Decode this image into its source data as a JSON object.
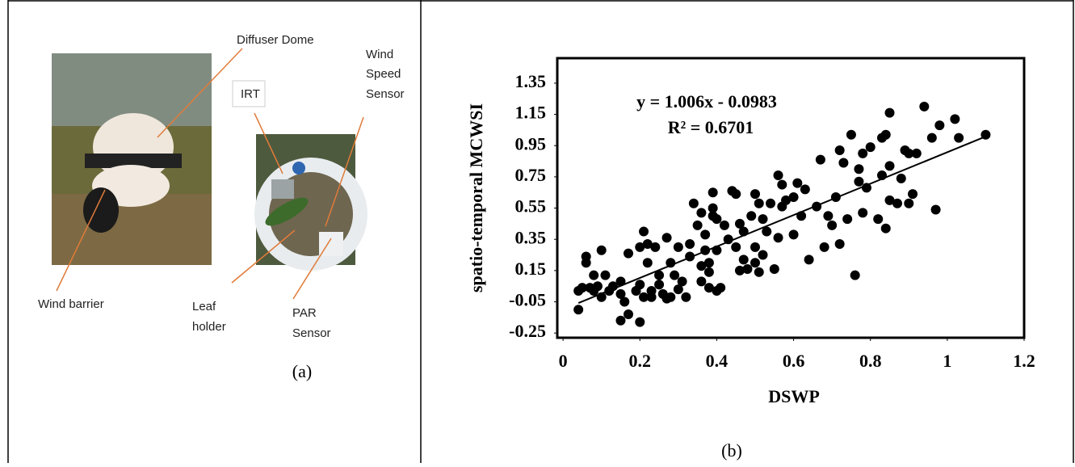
{
  "figure": {
    "panel_a": {
      "diffuser_dome": "Diffuser Dome",
      "irt": "IRT",
      "wind_speed_sensor": [
        "Wind",
        "Speed",
        "Sensor"
      ],
      "wind_barrier": "Wind barrier",
      "leaf_holder": [
        "Leaf",
        "holder"
      ],
      "par_sensor": [
        "PAR",
        "Sensor"
      ]
    },
    "caption_a": "(a)",
    "caption_b": "(b)"
  },
  "chart_data": {
    "type": "scatter",
    "x_label": "DSWP",
    "y_label": "spatio-temporal MCWSI",
    "annotations": [
      "y = 1.006x - 0.0983",
      "R² = 0.6701"
    ],
    "color": "#000000",
    "x": [
      0.04,
      0.04,
      0.05,
      0.06,
      0.06,
      0.07,
      0.08,
      0.08,
      0.09,
      0.1,
      0.1,
      0.11,
      0.12,
      0.13,
      0.15,
      0.15,
      0.15,
      0.16,
      0.17,
      0.17,
      0.19,
      0.2,
      0.2,
      0.2,
      0.21,
      0.21,
      0.22,
      0.22,
      0.23,
      0.23,
      0.24,
      0.25,
      0.25,
      0.26,
      0.27,
      0.27,
      0.28,
      0.28,
      0.29,
      0.3,
      0.3,
      0.31,
      0.32,
      0.33,
      0.33,
      0.34,
      0.35,
      0.36,
      0.36,
      0.36,
      0.37,
      0.37,
      0.38,
      0.38,
      0.38,
      0.39,
      0.39,
      0.39,
      0.4,
      0.4,
      0.4,
      0.41,
      0.42,
      0.43,
      0.44,
      0.45,
      0.45,
      0.46,
      0.46,
      0.47,
      0.47,
      0.48,
      0.49,
      0.5,
      0.5,
      0.5,
      0.51,
      0.51,
      0.52,
      0.52,
      0.53,
      0.54,
      0.55,
      0.56,
      0.56,
      0.57,
      0.57,
      0.58,
      0.6,
      0.6,
      0.61,
      0.62,
      0.63,
      0.64,
      0.66,
      0.67,
      0.68,
      0.69,
      0.7,
      0.71,
      0.72,
      0.72,
      0.73,
      0.74,
      0.75,
      0.76,
      0.77,
      0.77,
      0.78,
      0.78,
      0.79,
      0.8,
      0.82,
      0.83,
      0.83,
      0.84,
      0.84,
      0.85,
      0.85,
      0.85,
      0.87,
      0.88,
      0.89,
      0.9,
      0.9,
      0.91,
      0.92,
      0.94,
      0.96,
      0.97,
      0.98,
      1.02,
      1.03,
      1.1
    ],
    "values": [
      -0.1,
      0.02,
      0.04,
      0.2,
      0.24,
      0.04,
      0.02,
      0.12,
      0.05,
      0.28,
      -0.02,
      0.12,
      0.02,
      0.05,
      -0.17,
      0.08,
      0.0,
      -0.05,
      -0.13,
      0.26,
      0.02,
      -0.18,
      0.3,
      0.06,
      0.4,
      -0.02,
      0.32,
      0.2,
      -0.02,
      0.02,
      0.3,
      0.12,
      0.06,
      0.0,
      0.36,
      -0.03,
      -0.02,
      0.2,
      0.12,
      0.03,
      0.3,
      0.08,
      -0.02,
      0.24,
      0.32,
      0.58,
      0.44,
      0.18,
      0.08,
      0.52,
      0.28,
      0.38,
      0.14,
      0.2,
      0.04,
      0.5,
      0.55,
      0.65,
      0.48,
      0.28,
      0.02,
      0.04,
      0.44,
      0.35,
      0.66,
      0.64,
      0.3,
      0.45,
      0.15,
      0.22,
      0.4,
      0.16,
      0.5,
      0.2,
      0.3,
      0.64,
      0.58,
      0.14,
      0.48,
      0.25,
      0.4,
      0.58,
      0.16,
      0.36,
      0.76,
      0.7,
      0.56,
      0.6,
      0.38,
      0.62,
      0.71,
      0.5,
      0.67,
      0.22,
      0.56,
      0.86,
      0.3,
      0.5,
      0.44,
      0.62,
      0.32,
      0.92,
      0.84,
      0.48,
      1.02,
      0.12,
      0.72,
      0.8,
      0.52,
      0.9,
      0.68,
      0.94,
      0.48,
      0.76,
      1.0,
      0.42,
      1.02,
      0.6,
      0.82,
      1.16,
      0.58,
      0.74,
      0.92,
      0.9,
      0.58,
      0.64,
      0.9,
      1.2,
      1.0,
      0.54,
      1.08,
      1.12,
      1.0,
      1.02
    ],
    "trendline": {
      "slope": 1.006,
      "intercept": -0.0983,
      "xlim": [
        0.04,
        1.1
      ]
    },
    "xlim": [
      -0.015,
      1.2
    ],
    "ylim": [
      -0.28,
      1.51
    ],
    "xticks": [
      0,
      0.2,
      0.4,
      0.6,
      0.8,
      1,
      1.2
    ],
    "yticks": [
      -0.25,
      -0.05,
      0.15,
      0.35,
      0.55,
      0.75,
      0.95,
      1.15,
      1.35
    ]
  }
}
